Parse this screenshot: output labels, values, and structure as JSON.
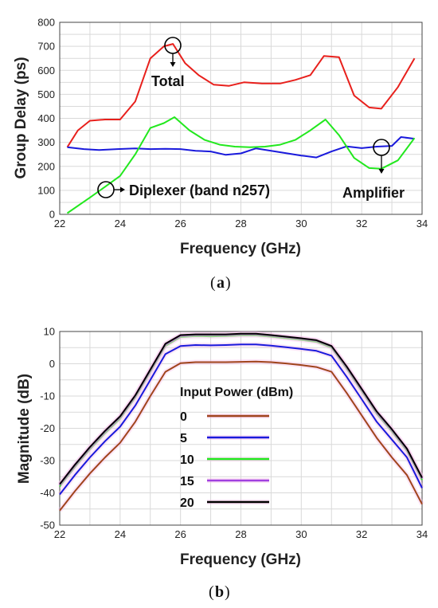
{
  "colors": {
    "total": "#e8201c",
    "diplexer": "#1a1adc",
    "amplifier": "#22e81e",
    "p0": "#a0441c",
    "p5": "#1a1adc",
    "p10": "#22e81e",
    "p15": "#a040e0",
    "p20": "#000000",
    "grid": "#d9d9d9"
  },
  "captions": {
    "a": "a",
    "b": "b"
  },
  "chart_data": [
    {
      "type": "line",
      "xlabel": "Frequency (GHz)",
      "ylabel": "Group Delay (ps)",
      "xlim": [
        22,
        34
      ],
      "ylim": [
        0,
        800
      ],
      "xticks": [
        22,
        24,
        26,
        28,
        30,
        32,
        34
      ],
      "yticks": [
        0,
        100,
        200,
        300,
        400,
        500,
        600,
        700,
        800
      ],
      "grid": true,
      "series": [
        {
          "key": "total",
          "x": [
            22.25,
            22.6,
            23.0,
            23.5,
            24.0,
            24.5,
            25.0,
            25.45,
            25.75,
            26.15,
            26.6,
            27.1,
            27.6,
            28.1,
            28.7,
            29.3,
            29.8,
            30.3,
            30.75,
            31.25,
            31.75,
            32.25,
            32.65,
            33.2,
            33.75
          ],
          "y": [
            280,
            350,
            390,
            395,
            395,
            470,
            650,
            700,
            710,
            630,
            580,
            540,
            535,
            550,
            545,
            545,
            560,
            580,
            660,
            655,
            495,
            445,
            440,
            530,
            650
          ]
        },
        {
          "key": "diplexer",
          "x": [
            22.25,
            22.8,
            23.3,
            23.9,
            24.5,
            25.0,
            25.5,
            26.0,
            26.5,
            27.0,
            27.5,
            28.0,
            28.5,
            29.0,
            29.5,
            30.0,
            30.5,
            31.0,
            31.5,
            32.0,
            32.5,
            33.0,
            33.3,
            33.75
          ],
          "y": [
            280,
            272,
            268,
            272,
            275,
            272,
            273,
            272,
            265,
            262,
            248,
            254,
            275,
            265,
            255,
            245,
            237,
            262,
            283,
            276,
            282,
            285,
            322,
            315
          ]
        },
        {
          "key": "amplifier",
          "x": [
            22.25,
            23.0,
            23.5,
            24.0,
            24.5,
            25.0,
            25.45,
            25.8,
            26.3,
            26.8,
            27.3,
            27.8,
            28.3,
            28.8,
            29.3,
            29.8,
            30.3,
            30.8,
            31.25,
            31.75,
            32.25,
            32.65,
            33.2,
            33.75
          ],
          "y": [
            5,
            70,
            115,
            160,
            250,
            360,
            380,
            405,
            350,
            310,
            290,
            282,
            280,
            282,
            290,
            310,
            350,
            395,
            330,
            235,
            193,
            190,
            225,
            318
          ]
        }
      ],
      "annotations": [
        "Total",
        "Diplexer (band n257)",
        "Amplifier"
      ]
    },
    {
      "type": "line",
      "xlabel": "Frequency (GHz)",
      "ylabel": "Magnitude (dB)",
      "xlim": [
        22,
        34
      ],
      "ylim": [
        -50,
        10
      ],
      "xticks": [
        22,
        24,
        26,
        28,
        30,
        32,
        34
      ],
      "yticks": [
        -50,
        -40,
        -30,
        -20,
        -10,
        0,
        10
      ],
      "grid": true,
      "legend_title": "Input Power (dBm)",
      "legend_placement": "center",
      "x": [
        22,
        22.5,
        23,
        23.5,
        24,
        24.5,
        25,
        25.5,
        26,
        26.5,
        27,
        27.5,
        28,
        28.5,
        29,
        29.5,
        30,
        30.5,
        31,
        31.5,
        32,
        32.5,
        33,
        33.5,
        34
      ],
      "series": [
        {
          "key": "p0",
          "name": "0",
          "values": [
            -45.5,
            -39.5,
            -34,
            -29,
            -24.5,
            -18,
            -10,
            -2.5,
            0.2,
            0.5,
            0.5,
            0.5,
            0.6,
            0.7,
            0.5,
            0.1,
            -0.4,
            -1,
            -2.5,
            -9,
            -16,
            -23,
            -29,
            -34.5,
            -43.5
          ]
        },
        {
          "key": "p5",
          "name": "5",
          "values": [
            -40.5,
            -34.5,
            -29,
            -24,
            -19.5,
            -13,
            -5,
            3,
            5.5,
            5.8,
            5.7,
            5.8,
            6,
            6,
            5.6,
            5.1,
            4.6,
            4,
            2.5,
            -4,
            -11,
            -18,
            -23.5,
            -29,
            -38.5
          ]
        },
        {
          "key": "p10",
          "name": "10",
          "values": [
            -38,
            -32,
            -26.5,
            -21.5,
            -17,
            -10.5,
            -2.5,
            5.5,
            8.3,
            8.6,
            8.5,
            8.6,
            8.8,
            8.8,
            8.4,
            7.9,
            7.4,
            6.8,
            5,
            -1.5,
            -8.5,
            -15.5,
            -21,
            -27,
            -36
          ]
        },
        {
          "key": "p15",
          "name": "15",
          "values": [
            -37.5,
            -31.5,
            -26,
            -21,
            -16.5,
            -10,
            -2,
            6,
            8.7,
            9,
            9,
            9,
            9.2,
            9.2,
            8.8,
            8.3,
            7.8,
            7.2,
            5.4,
            -1,
            -8,
            -15,
            -20.5,
            -26.5,
            -35.5
          ]
        },
        {
          "key": "p20",
          "name": "20",
          "values": [
            -37.3,
            -31.3,
            -25.8,
            -20.8,
            -16.3,
            -9.8,
            -1.8,
            6.2,
            8.9,
            9.1,
            9.1,
            9.1,
            9.3,
            9.3,
            8.9,
            8.4,
            7.9,
            7.3,
            5.5,
            -0.8,
            -7.8,
            -14.8,
            -20.3,
            -26.3,
            -35.3
          ]
        }
      ]
    }
  ]
}
